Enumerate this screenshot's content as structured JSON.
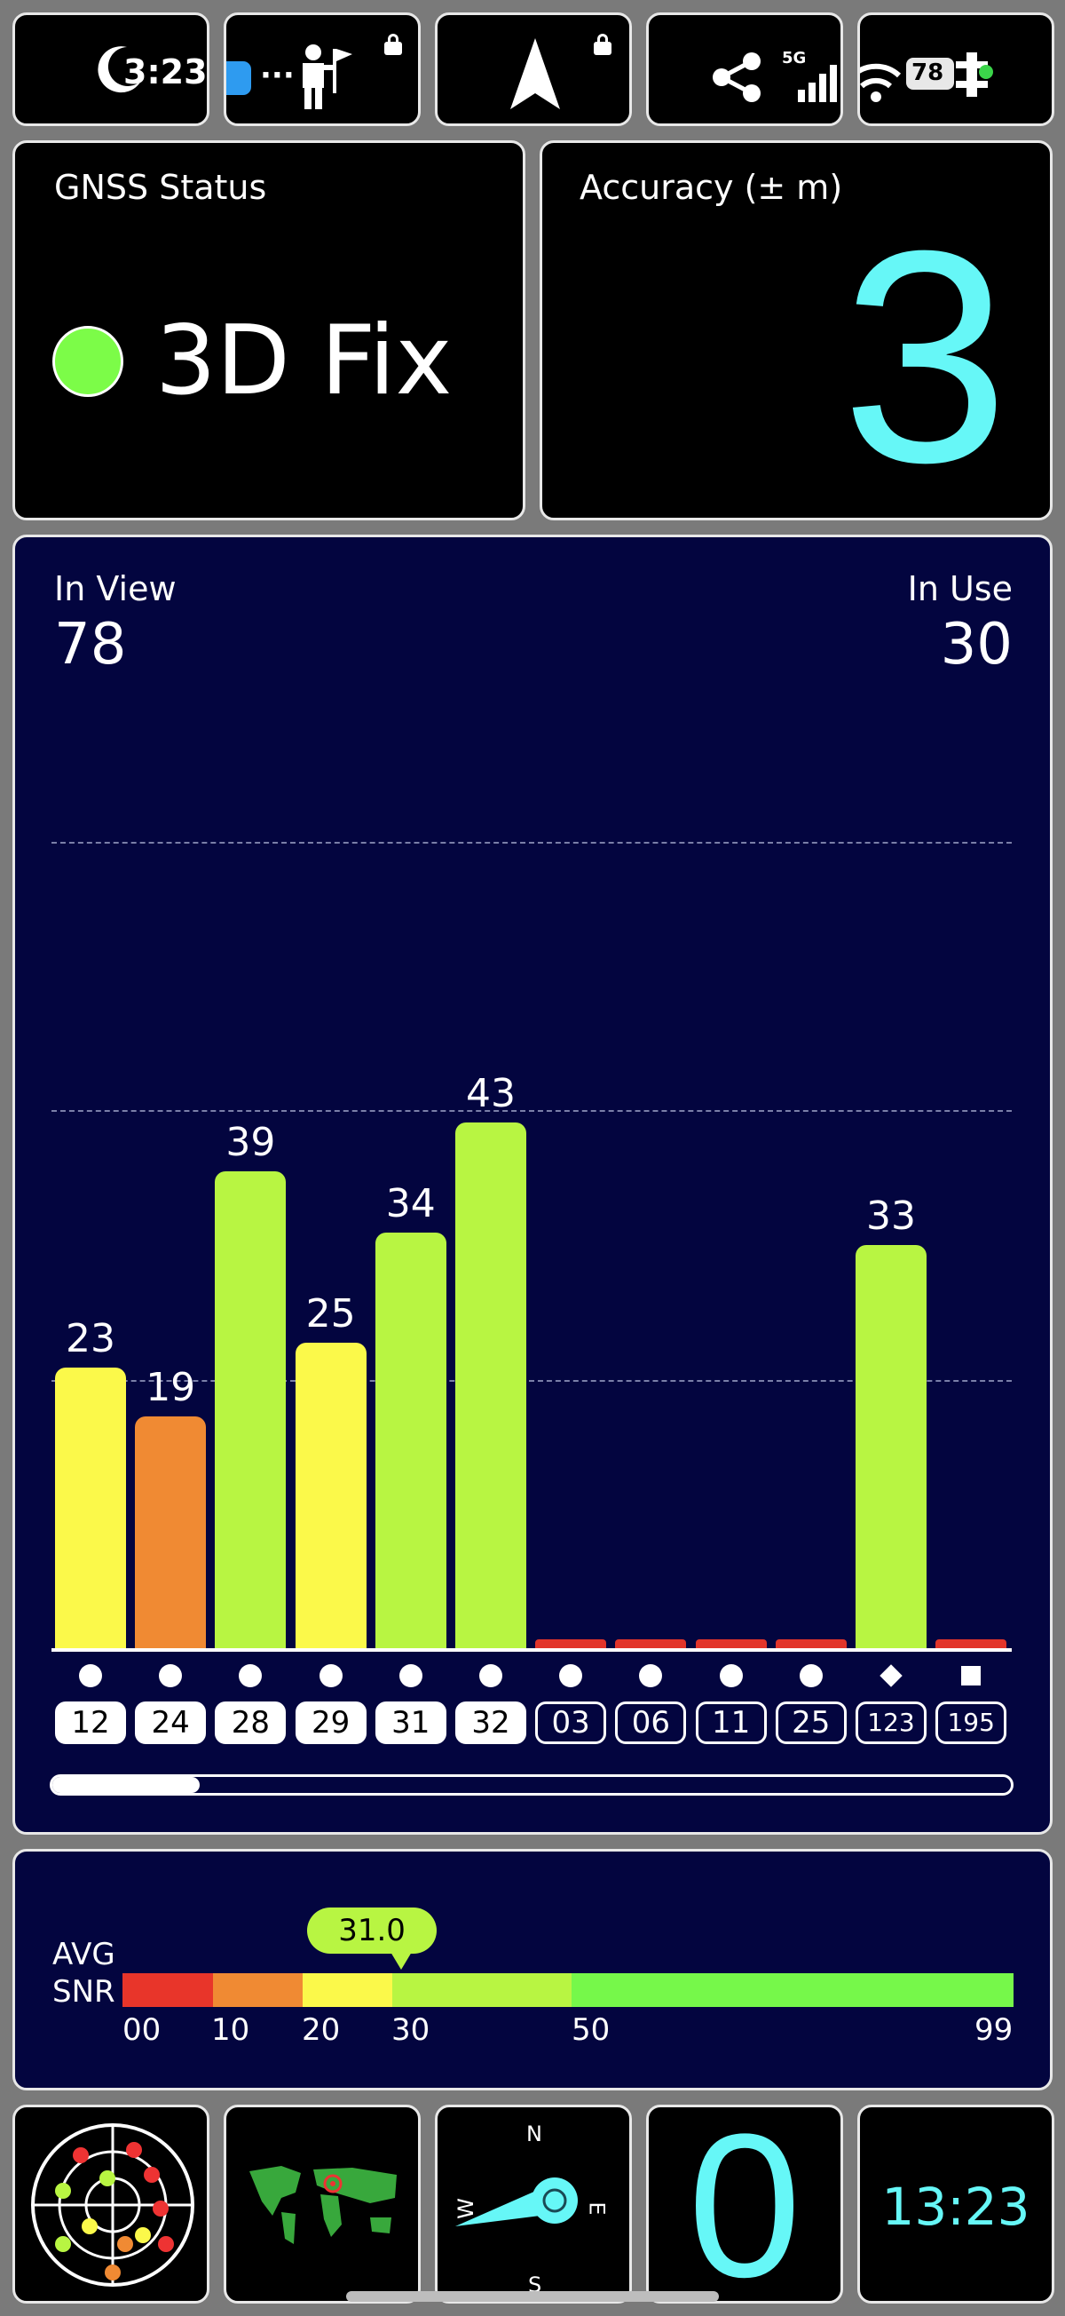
{
  "status_bar": {
    "time": "3:23",
    "network": "5G",
    "battery": "78",
    "dots": "···"
  },
  "gnss_status": {
    "title": "GNSS Status",
    "fix": "3D Fix",
    "fix_color": "#7cfc48"
  },
  "accuracy": {
    "title": "Accuracy (± m)",
    "value": "3",
    "value_color": "#66f7f7"
  },
  "satellites": {
    "in_view_label": "In View",
    "in_view": "78",
    "in_use_label": "In Use",
    "in_use": "30"
  },
  "chart_data": {
    "type": "bar",
    "categories": [
      "12",
      "24",
      "28",
      "29",
      "31",
      "32",
      "03",
      "06",
      "11",
      "25",
      "123",
      "195"
    ],
    "values": [
      23,
      19,
      39,
      25,
      34,
      43,
      0,
      0,
      0,
      0,
      33,
      0
    ],
    "value_labels": [
      "23",
      "19",
      "39",
      "25",
      "34",
      "43",
      "",
      "",
      "",
      "",
      "33",
      ""
    ],
    "in_use": [
      true,
      true,
      true,
      true,
      true,
      true,
      false,
      false,
      false,
      false,
      false,
      false
    ],
    "markers": [
      "circle",
      "circle",
      "circle",
      "circle",
      "circle",
      "circle",
      "circle",
      "circle",
      "circle",
      "circle",
      "diamond",
      "square"
    ],
    "colors": [
      "#fbf94a",
      "#f08a33",
      "#b8f542",
      "#fbf94a",
      "#b8f542",
      "#b8f542",
      "#e2352a",
      "#e2352a",
      "#e2352a",
      "#e2352a",
      "#b8f542",
      "#e2352a"
    ],
    "ylim": [
      0,
      66
    ],
    "grid": true
  },
  "avg_snr": {
    "label_line1": "AVG",
    "label_line2": "SNR",
    "value": "31.0",
    "value_num": 31.0,
    "scale": [
      {
        "from": 0,
        "to": 10,
        "color": "#e8352a"
      },
      {
        "from": 10,
        "to": 20,
        "color": "#f08a33"
      },
      {
        "from": 20,
        "to": 30,
        "color": "#fbf94a"
      },
      {
        "from": 30,
        "to": 50,
        "color": "#b8f542"
      },
      {
        "from": 50,
        "to": 99,
        "color": "#76f84a"
      }
    ],
    "ticks": [
      "00",
      "10",
      "20",
      "30",
      "50",
      "99"
    ]
  },
  "bottom_tiles": {
    "compass_n": "N",
    "compass_e": "E",
    "compass_s": "S",
    "compass_w": "W",
    "speed": "0",
    "clock": "13:23"
  }
}
